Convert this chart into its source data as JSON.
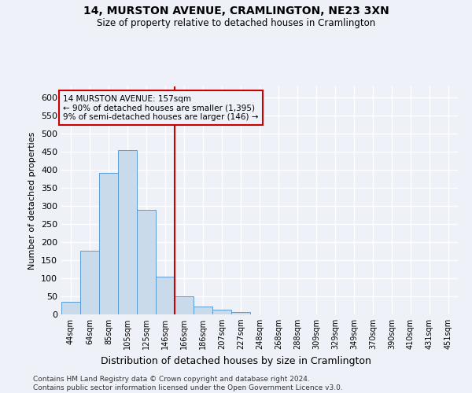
{
  "title1": "14, MURSTON AVENUE, CRAMLINGTON, NE23 3XN",
  "title2": "Size of property relative to detached houses in Cramlington",
  "xlabel": "Distribution of detached houses by size in Cramlington",
  "ylabel": "Number of detached properties",
  "categories": [
    "44sqm",
    "64sqm",
    "85sqm",
    "105sqm",
    "125sqm",
    "146sqm",
    "166sqm",
    "186sqm",
    "207sqm",
    "227sqm",
    "248sqm",
    "268sqm",
    "288sqm",
    "309sqm",
    "329sqm",
    "349sqm",
    "370sqm",
    "390sqm",
    "410sqm",
    "431sqm",
    "451sqm"
  ],
  "values": [
    35,
    175,
    390,
    455,
    290,
    105,
    50,
    22,
    13,
    7,
    1,
    0,
    0,
    1,
    0,
    0,
    0,
    1,
    0,
    1,
    0
  ],
  "bar_color": "#c9daea",
  "bar_edge_color": "#5b9bd5",
  "vline_color": "#cc0000",
  "vline_position": 5.5,
  "annotation_title": "14 MURSTON AVENUE: 157sqm",
  "annotation_line1": "← 90% of detached houses are smaller (1,395)",
  "annotation_line2": "9% of semi-detached houses are larger (146) →",
  "annotation_box_edgecolor": "#cc0000",
  "ylim": [
    0,
    630
  ],
  "yticks": [
    0,
    50,
    100,
    150,
    200,
    250,
    300,
    350,
    400,
    450,
    500,
    550,
    600
  ],
  "footer1": "Contains HM Land Registry data © Crown copyright and database right 2024.",
  "footer2": "Contains public sector information licensed under the Open Government Licence v3.0.",
  "bg_color": "#eef2f8",
  "grid_color": "#ffffff"
}
